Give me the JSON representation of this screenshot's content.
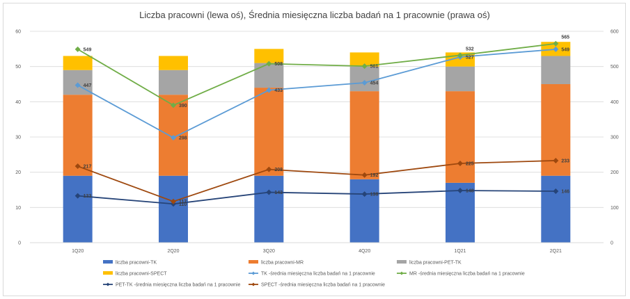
{
  "chart_data": {
    "type": "bar",
    "stacked": true,
    "title": "Liczba pracowni (lewa oś), Średnia miesięczna liczba badań na 1 pracownie (prawa oś)",
    "categories": [
      "1Q20",
      "2Q20",
      "3Q20",
      "4Q20",
      "1Q21",
      "2Q21"
    ],
    "y_left": {
      "min": 0,
      "max": 60,
      "ticks": [
        "0",
        "10",
        "20",
        "30",
        "40",
        "50",
        "60"
      ]
    },
    "y_right": {
      "min": 0,
      "max": 600,
      "ticks": [
        "0",
        "100",
        "200",
        "300",
        "400",
        "500",
        "600"
      ]
    },
    "grid": true,
    "legend_position": "bottom",
    "bar_series": [
      {
        "name": "liczba pracowni-TK",
        "color": "#4472c4",
        "values": [
          19,
          19,
          19,
          18,
          17,
          19
        ]
      },
      {
        "name": "liczba pracowni-MR",
        "color": "#ed7d31",
        "values": [
          23,
          23,
          25,
          25,
          26,
          26
        ]
      },
      {
        "name": "liczba pracowni-PET-TK",
        "color": "#a5a5a5",
        "values": [
          7,
          7,
          7,
          7,
          7,
          8
        ]
      },
      {
        "name": "liczba pracowni-SPECT",
        "color": "#ffc000",
        "values": [
          4,
          4,
          4,
          4,
          4,
          4
        ]
      }
    ],
    "line_series": [
      {
        "name": "TK -średnia miesięczna liczba badań na 1 pracownie",
        "color": "#5b9bd5",
        "marker": "diamond",
        "values": [
          447,
          298,
          433,
          454,
          527,
          549
        ],
        "labels": [
          "447",
          "298",
          "433",
          "454",
          "527",
          "549"
        ]
      },
      {
        "name": "MR -średnia miesięczna liczba badań na 1 pracownie",
        "color": "#70ad47",
        "marker": "diamond",
        "values": [
          549,
          390,
          508,
          501,
          532,
          565
        ],
        "labels": [
          "549",
          "390",
          "508",
          "501",
          "532",
          "565"
        ]
      },
      {
        "name": "PET-TK -średnia miesięczna liczba badań na 1 pracownie",
        "color": "#264478",
        "marker": "diamond",
        "values": [
          133,
          110,
          143,
          138,
          148,
          146
        ],
        "labels": [
          "133",
          "110",
          "143",
          "138",
          "148",
          "146"
        ]
      },
      {
        "name": "SPECT -średnia miesięczna liczba badań na 1 pracownie",
        "color": "#9e480e",
        "marker": "diamond",
        "values": [
          217,
          117,
          208,
          192,
          225,
          233
        ],
        "labels": [
          "217",
          "117",
          "208",
          "192",
          "225",
          "233"
        ]
      }
    ]
  }
}
